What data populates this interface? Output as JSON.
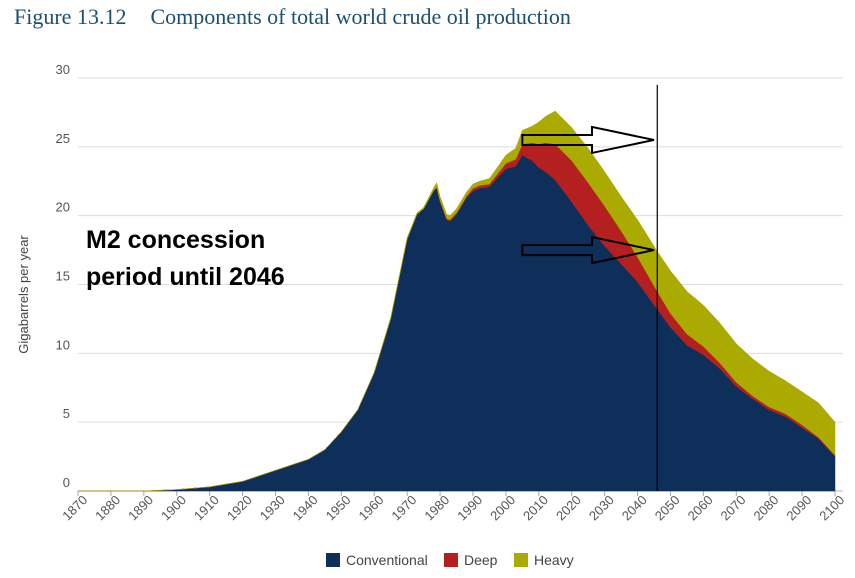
{
  "title": {
    "figure": "Figure 13.12",
    "text": "Components of total world crude oil production"
  },
  "chart_data": {
    "type": "area",
    "stacked": true,
    "ylabel": "Gigabarrels per year",
    "ylim": [
      0,
      30
    ],
    "yticks": [
      0,
      5,
      10,
      15,
      20,
      25,
      30
    ],
    "xlim": [
      1870,
      2100
    ],
    "xticks": [
      1870,
      1880,
      1890,
      1900,
      1910,
      1920,
      1930,
      1940,
      1950,
      1960,
      1970,
      1980,
      1990,
      2000,
      2010,
      2020,
      2030,
      2040,
      2050,
      2060,
      2070,
      2080,
      2090,
      2100
    ],
    "grid": "horizontal",
    "legend_position": "bottom-center",
    "x": [
      1870,
      1890,
      1900,
      1910,
      1920,
      1925,
      1930,
      1935,
      1940,
      1945,
      1950,
      1955,
      1960,
      1965,
      1970,
      1973,
      1975,
      1978,
      1979,
      1980,
      1982,
      1983,
      1985,
      1988,
      1990,
      1992,
      1995,
      1998,
      2000,
      2003,
      2005,
      2008,
      2010,
      2012,
      2015,
      2020,
      2025,
      2030,
      2035,
      2040,
      2046,
      2050,
      2055,
      2060,
      2065,
      2070,
      2075,
      2080,
      2085,
      2090,
      2095,
      2100
    ],
    "series": [
      {
        "name": "Conventional",
        "color": "#0e2f5a",
        "values": [
          0,
          0,
          0.1,
          0.3,
          0.7,
          1.1,
          1.5,
          1.9,
          2.3,
          3.0,
          4.3,
          5.9,
          8.6,
          12.5,
          18.3,
          20.1,
          20.5,
          21.8,
          22.0,
          21.0,
          19.7,
          19.6,
          20.1,
          21.3,
          21.8,
          22.0,
          22.1,
          22.9,
          23.4,
          23.6,
          24.4,
          24.0,
          23.5,
          23.2,
          22.6,
          21.0,
          19.3,
          17.8,
          16.5,
          15.2,
          13.2,
          11.9,
          10.6,
          9.9,
          8.9,
          7.6,
          6.7,
          5.9,
          5.4,
          4.6,
          3.8,
          2.5
        ]
      },
      {
        "name": "Deep",
        "color": "#b3201f",
        "values": [
          0,
          0,
          0,
          0,
          0,
          0,
          0,
          0,
          0,
          0,
          0,
          0,
          0,
          0,
          0,
          0,
          0,
          0,
          0.1,
          0.1,
          0.1,
          0.1,
          0.1,
          0.1,
          0.2,
          0.2,
          0.2,
          0.3,
          0.4,
          0.5,
          0.8,
          1.3,
          1.7,
          2.1,
          2.6,
          3.0,
          3.1,
          2.9,
          2.4,
          1.8,
          1.3,
          1.0,
          0.8,
          0.6,
          0.4,
          0.3,
          0.2,
          0.2,
          0.2,
          0.2,
          0.1,
          0.1
        ]
      },
      {
        "name": "Heavy",
        "color": "#aaaa00",
        "values": [
          0,
          0,
          0,
          0,
          0,
          0,
          0,
          0,
          0,
          0,
          0,
          0,
          0,
          0.1,
          0.1,
          0.1,
          0.1,
          0.2,
          0.3,
          0.3,
          0.3,
          0.3,
          0.3,
          0.3,
          0.3,
          0.3,
          0.4,
          0.5,
          0.6,
          0.8,
          1.0,
          1.2,
          1.6,
          1.9,
          2.4,
          2.4,
          2.5,
          2.5,
          2.5,
          2.7,
          2.9,
          3.1,
          3.1,
          3.0,
          2.9,
          2.8,
          2.7,
          2.6,
          2.4,
          2.4,
          2.5,
          2.4
        ]
      }
    ],
    "annotations": {
      "text_line1": "M2 concession",
      "text_line2": "period until 2046",
      "vline_year": 2046,
      "arrows": [
        {
          "from_year": 2005,
          "to_year": 2045,
          "y": 25.5
        },
        {
          "from_year": 2005,
          "to_year": 2045,
          "y": 17.5
        }
      ]
    }
  }
}
